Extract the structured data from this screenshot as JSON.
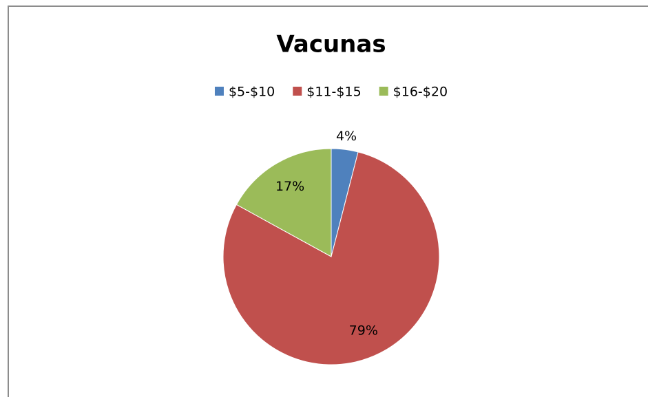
{
  "chart_data": {
    "type": "pie",
    "title": "Vacunas",
    "categories": [
      "$5-$10",
      "$11-$15",
      "$16-$20"
    ],
    "values": [
      4,
      79,
      17
    ],
    "value_labels": [
      "4%",
      "79%",
      "17%"
    ],
    "colors": [
      "#4f81bd",
      "#c0504d",
      "#9bbb59"
    ],
    "legend": "top"
  }
}
